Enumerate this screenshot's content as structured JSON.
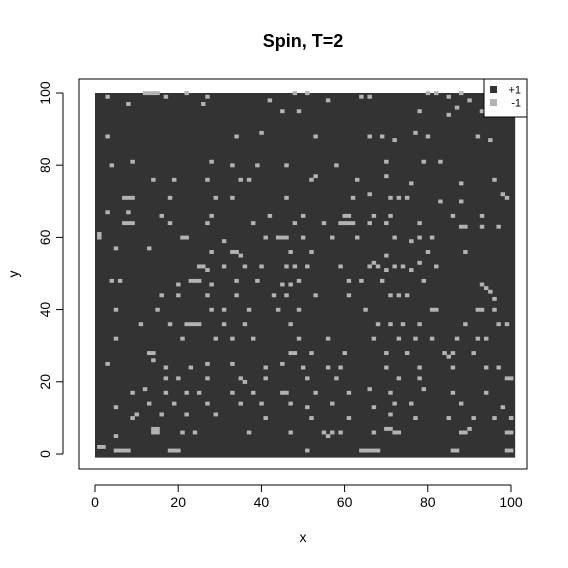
{
  "chart_data": {
    "type": "heatmap",
    "title": "Spin, T=2",
    "xlabel": "x",
    "ylabel": "y",
    "xlim": [
      0,
      100
    ],
    "ylim": [
      0,
      100
    ],
    "xticks": [
      "0",
      "20",
      "40",
      "60",
      "80",
      "100"
    ],
    "yticks": [
      "0",
      "20",
      "40",
      "60",
      "80",
      "100"
    ],
    "grid": false,
    "legend_position": "top-right",
    "background_value": 1,
    "legend": [
      {
        "label": "+1",
        "value": 1,
        "color": "#333333"
      },
      {
        "label": "-1",
        "value": -1,
        "color": "#b3b3b3"
      }
    ],
    "minority_cells_value": -1,
    "minority_cells": [
      [
        3,
        99
      ],
      [
        12,
        100
      ],
      [
        13,
        100
      ],
      [
        14,
        100
      ],
      [
        15,
        100
      ],
      [
        17,
        99
      ],
      [
        22,
        100
      ],
      [
        27,
        99
      ],
      [
        48,
        100
      ],
      [
        51,
        100
      ],
      [
        64,
        99
      ],
      [
        66,
        99
      ],
      [
        80,
        100
      ],
      [
        82,
        100
      ],
      [
        85,
        99
      ],
      [
        88,
        100
      ],
      [
        95,
        100
      ],
      [
        96,
        100
      ],
      [
        8,
        97
      ],
      [
        26,
        97
      ],
      [
        42,
        98
      ],
      [
        56,
        98
      ],
      [
        90,
        98
      ],
      [
        97,
        99
      ],
      [
        45,
        95
      ],
      [
        49,
        95
      ],
      [
        78,
        95
      ],
      [
        85,
        94
      ],
      [
        87,
        96
      ],
      [
        93,
        95
      ],
      [
        97,
        95
      ],
      [
        3,
        88
      ],
      [
        34,
        88
      ],
      [
        40,
        89
      ],
      [
        53,
        88
      ],
      [
        66,
        88
      ],
      [
        69,
        88
      ],
      [
        72,
        87
      ],
      [
        77,
        89
      ],
      [
        80,
        88
      ],
      [
        92,
        88
      ],
      [
        95,
        87
      ],
      [
        4,
        80
      ],
      [
        9,
        81
      ],
      [
        28,
        81
      ],
      [
        33,
        80
      ],
      [
        39,
        80
      ],
      [
        46,
        80
      ],
      [
        58,
        80
      ],
      [
        70,
        81
      ],
      [
        79,
        81
      ],
      [
        83,
        81
      ],
      [
        14,
        76
      ],
      [
        19,
        76
      ],
      [
        27,
        76
      ],
      [
        35,
        76
      ],
      [
        37,
        76
      ],
      [
        52,
        76
      ],
      [
        53,
        77
      ],
      [
        63,
        76
      ],
      [
        70,
        77
      ],
      [
        76,
        75
      ],
      [
        88,
        75
      ],
      [
        96,
        76
      ],
      [
        98,
        72
      ],
      [
        99,
        71
      ],
      [
        7,
        71
      ],
      [
        8,
        71
      ],
      [
        9,
        71
      ],
      [
        18,
        71
      ],
      [
        29,
        71
      ],
      [
        33,
        71
      ],
      [
        46,
        71
      ],
      [
        62,
        71
      ],
      [
        66,
        72
      ],
      [
        71,
        71
      ],
      [
        73,
        71
      ],
      [
        75,
        71
      ],
      [
        83,
        70
      ],
      [
        88,
        70
      ],
      [
        3,
        67
      ],
      [
        8,
        67
      ],
      [
        16,
        66
      ],
      [
        28,
        66
      ],
      [
        42,
        66
      ],
      [
        50,
        66
      ],
      [
        60,
        66
      ],
      [
        61,
        66
      ],
      [
        67,
        66
      ],
      [
        71,
        66
      ],
      [
        86,
        66
      ],
      [
        93,
        66
      ],
      [
        7,
        64
      ],
      [
        8,
        64
      ],
      [
        9,
        64
      ],
      [
        18,
        64
      ],
      [
        27,
        64
      ],
      [
        38,
        64
      ],
      [
        48,
        64
      ],
      [
        55,
        64
      ],
      [
        59,
        64
      ],
      [
        60,
        64
      ],
      [
        61,
        64
      ],
      [
        62,
        64
      ],
      [
        66,
        64
      ],
      [
        70,
        64
      ],
      [
        78,
        64
      ],
      [
        88,
        63
      ],
      [
        89,
        63
      ],
      [
        93,
        63
      ],
      [
        97,
        63
      ],
      [
        1,
        60
      ],
      [
        1,
        61
      ],
      [
        21,
        60
      ],
      [
        22,
        60
      ],
      [
        31,
        59
      ],
      [
        41,
        60
      ],
      [
        44,
        60
      ],
      [
        45,
        60
      ],
      [
        46,
        60
      ],
      [
        50,
        60
      ],
      [
        57,
        60
      ],
      [
        63,
        60
      ],
      [
        72,
        60
      ],
      [
        76,
        59
      ],
      [
        78,
        60
      ],
      [
        81,
        60
      ],
      [
        5,
        57
      ],
      [
        13,
        57
      ],
      [
        28,
        56
      ],
      [
        33,
        56
      ],
      [
        34,
        56
      ],
      [
        35,
        55
      ],
      [
        47,
        56
      ],
      [
        52,
        56
      ],
      [
        70,
        55
      ],
      [
        80,
        56
      ],
      [
        89,
        56
      ],
      [
        25,
        52
      ],
      [
        26,
        52
      ],
      [
        27,
        51
      ],
      [
        31,
        52
      ],
      [
        36,
        52
      ],
      [
        40,
        52
      ],
      [
        46,
        52
      ],
      [
        48,
        52
      ],
      [
        51,
        52
      ],
      [
        59,
        52
      ],
      [
        66,
        52
      ],
      [
        67,
        53
      ],
      [
        68,
        52
      ],
      [
        70,
        51
      ],
      [
        72,
        52
      ],
      [
        74,
        52
      ],
      [
        76,
        51
      ],
      [
        78,
        53
      ],
      [
        82,
        52
      ],
      [
        4,
        48
      ],
      [
        6,
        48
      ],
      [
        20,
        47
      ],
      [
        23,
        48
      ],
      [
        24,
        48
      ],
      [
        25,
        48
      ],
      [
        28,
        47
      ],
      [
        34,
        48
      ],
      [
        39,
        48
      ],
      [
        45,
        47
      ],
      [
        47,
        47
      ],
      [
        49,
        48
      ],
      [
        61,
        48
      ],
      [
        64,
        48
      ],
      [
        69,
        48
      ],
      [
        79,
        48
      ],
      [
        93,
        47
      ],
      [
        94,
        46
      ],
      [
        95,
        45
      ],
      [
        16,
        44
      ],
      [
        20,
        44
      ],
      [
        27,
        44
      ],
      [
        34,
        44
      ],
      [
        43,
        44
      ],
      [
        46,
        44
      ],
      [
        53,
        44
      ],
      [
        61,
        44
      ],
      [
        71,
        44
      ],
      [
        73,
        44
      ],
      [
        75,
        44
      ],
      [
        96,
        43
      ],
      [
        5,
        40
      ],
      [
        15,
        40
      ],
      [
        28,
        40
      ],
      [
        31,
        40
      ],
      [
        37,
        40
      ],
      [
        44,
        40
      ],
      [
        49,
        40
      ],
      [
        65,
        40
      ],
      [
        81,
        40
      ],
      [
        82,
        40
      ],
      [
        92,
        40
      ],
      [
        93,
        40
      ],
      [
        96,
        40
      ],
      [
        11,
        36
      ],
      [
        18,
        36
      ],
      [
        22,
        36
      ],
      [
        23,
        36
      ],
      [
        24,
        36
      ],
      [
        25,
        36
      ],
      [
        31,
        36
      ],
      [
        36,
        36
      ],
      [
        47,
        36
      ],
      [
        68,
        36
      ],
      [
        71,
        36
      ],
      [
        74,
        36
      ],
      [
        78,
        36
      ],
      [
        89,
        36
      ],
      [
        97,
        36
      ],
      [
        99,
        36
      ],
      [
        5,
        32
      ],
      [
        21,
        32
      ],
      [
        29,
        32
      ],
      [
        33,
        32
      ],
      [
        38,
        32
      ],
      [
        49,
        32
      ],
      [
        56,
        32
      ],
      [
        67,
        32
      ],
      [
        73,
        32
      ],
      [
        77,
        32
      ],
      [
        81,
        32
      ],
      [
        87,
        32
      ],
      [
        92,
        32
      ],
      [
        94,
        32
      ],
      [
        13,
        28
      ],
      [
        14,
        28
      ],
      [
        47,
        28
      ],
      [
        48,
        28
      ],
      [
        52,
        28
      ],
      [
        60,
        28
      ],
      [
        70,
        28
      ],
      [
        75,
        28
      ],
      [
        84,
        28
      ],
      [
        85,
        27
      ],
      [
        86,
        28
      ],
      [
        91,
        28
      ],
      [
        3,
        25
      ],
      [
        14,
        26
      ],
      [
        17,
        24
      ],
      [
        23,
        24
      ],
      [
        27,
        25
      ],
      [
        33,
        25
      ],
      [
        41,
        24
      ],
      [
        45,
        25
      ],
      [
        50,
        24
      ],
      [
        56,
        24
      ],
      [
        59,
        24
      ],
      [
        70,
        24
      ],
      [
        78,
        24
      ],
      [
        86,
        24
      ],
      [
        94,
        24
      ],
      [
        97,
        24
      ],
      [
        17,
        21
      ],
      [
        20,
        21
      ],
      [
        27,
        21
      ],
      [
        35,
        21
      ],
      [
        36,
        20
      ],
      [
        41,
        21
      ],
      [
        51,
        21
      ],
      [
        58,
        21
      ],
      [
        73,
        21
      ],
      [
        78,
        21
      ],
      [
        99,
        21
      ],
      [
        100,
        21
      ],
      [
        9,
        17
      ],
      [
        12,
        18
      ],
      [
        17,
        17
      ],
      [
        22,
        17
      ],
      [
        25,
        17
      ],
      [
        33,
        17
      ],
      [
        38,
        17
      ],
      [
        45,
        17
      ],
      [
        46,
        17
      ],
      [
        53,
        17
      ],
      [
        61,
        17
      ],
      [
        66,
        18
      ],
      [
        71,
        17
      ],
      [
        79,
        18
      ],
      [
        86,
        17
      ],
      [
        94,
        17
      ],
      [
        5,
        13
      ],
      [
        13,
        14
      ],
      [
        19,
        14
      ],
      [
        27,
        14
      ],
      [
        35,
        14
      ],
      [
        40,
        14
      ],
      [
        47,
        14
      ],
      [
        51,
        13
      ],
      [
        57,
        14
      ],
      [
        67,
        13
      ],
      [
        72,
        14
      ],
      [
        76,
        14
      ],
      [
        88,
        14
      ],
      [
        98,
        13
      ],
      [
        9,
        10
      ],
      [
        10,
        11
      ],
      [
        16,
        11
      ],
      [
        22,
        11
      ],
      [
        29,
        11
      ],
      [
        41,
        10
      ],
      [
        52,
        10
      ],
      [
        61,
        10
      ],
      [
        71,
        11
      ],
      [
        77,
        10
      ],
      [
        85,
        10
      ],
      [
        91,
        10
      ],
      [
        96,
        10
      ],
      [
        100,
        10
      ],
      [
        1,
        2
      ],
      [
        2,
        2
      ],
      [
        5,
        5
      ],
      [
        14,
        7
      ],
      [
        15,
        7
      ],
      [
        14,
        6
      ],
      [
        15,
        6
      ],
      [
        21,
        6
      ],
      [
        24,
        6
      ],
      [
        37,
        6
      ],
      [
        47,
        6
      ],
      [
        55,
        6
      ],
      [
        56,
        5
      ],
      [
        57,
        6
      ],
      [
        59,
        6
      ],
      [
        67,
        6
      ],
      [
        70,
        7
      ],
      [
        71,
        7
      ],
      [
        72,
        6
      ],
      [
        73,
        6
      ],
      [
        88,
        6
      ],
      [
        89,
        6
      ],
      [
        90,
        7
      ],
      [
        99,
        6
      ],
      [
        100,
        6
      ],
      [
        5,
        1
      ],
      [
        6,
        1
      ],
      [
        7,
        1
      ],
      [
        8,
        1
      ],
      [
        18,
        1
      ],
      [
        19,
        1
      ],
      [
        20,
        1
      ],
      [
        51,
        1
      ],
      [
        64,
        1
      ],
      [
        65,
        1
      ],
      [
        66,
        1
      ],
      [
        67,
        1
      ],
      [
        68,
        1
      ],
      [
        86,
        1
      ],
      [
        87,
        1
      ],
      [
        99,
        1
      ],
      [
        100,
        1
      ]
    ]
  }
}
